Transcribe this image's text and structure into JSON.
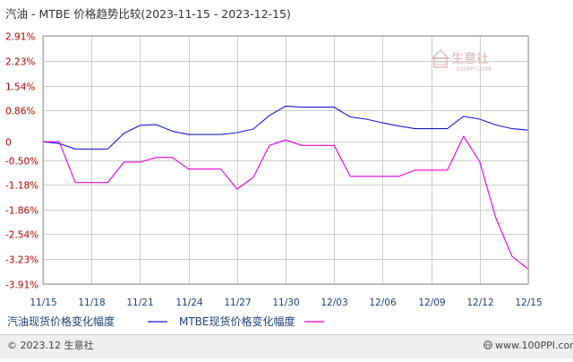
{
  "chart_data": {
    "type": "line",
    "title": "汽油 - MTBE 价格趋势比较(2023-11-15 - 2023-12-15)",
    "x": [
      "11/15",
      "11/16",
      "11/17",
      "11/18",
      "11/19",
      "11/20",
      "11/21",
      "11/22",
      "11/23",
      "11/24",
      "11/25",
      "11/26",
      "11/27",
      "11/28",
      "11/29",
      "11/30",
      "12/01",
      "12/02",
      "12/03",
      "12/04",
      "12/05",
      "12/06",
      "12/07",
      "12/08",
      "12/09",
      "12/10",
      "12/11",
      "12/12",
      "12/13",
      "12/14",
      "12/15"
    ],
    "x_tick_labels": [
      "11/15",
      "11/18",
      "11/21",
      "11/24",
      "11/27",
      "11/30",
      "12/03",
      "12/06",
      "12/09",
      "12/12",
      "12/15"
    ],
    "y_tick_labels": [
      "2.91%",
      "2.23%",
      "1.54%",
      "0.86%",
      "0",
      "-0.50%",
      "-1.18%",
      "-1.86%",
      "-2.54%",
      "-3.23%",
      "-3.91%"
    ],
    "y_tick_values": [
      2.91,
      2.23,
      1.54,
      0.86,
      0,
      -0.5,
      -1.18,
      -1.86,
      -2.54,
      -3.23,
      -3.91
    ],
    "ylim": [
      -3.91,
      2.91
    ],
    "grid": true,
    "legend_position": "bottom-left",
    "series": [
      {
        "name": "汽油现货价格变化幅度",
        "color": "#1a1ad0",
        "values": [
          0.0,
          -0.05,
          -0.2,
          -0.2,
          -0.2,
          0.23,
          0.45,
          0.47,
          0.29,
          0.2,
          0.2,
          0.2,
          0.25,
          0.35,
          0.72,
          0.98,
          0.95,
          0.95,
          0.95,
          0.68,
          0.62,
          0.52,
          0.43,
          0.36,
          0.36,
          0.36,
          0.7,
          0.62,
          0.46,
          0.36,
          0.32
        ]
      },
      {
        "name": "MTBE现货价格变化幅度",
        "color": "#e000e0",
        "values": [
          0.0,
          0.0,
          -1.12,
          -1.12,
          -1.12,
          -0.56,
          -0.56,
          -0.43,
          -0.43,
          -0.75,
          -0.75,
          -0.75,
          -1.3,
          -0.98,
          -0.1,
          0.05,
          -0.1,
          -0.1,
          -0.1,
          -0.95,
          -0.95,
          -0.95,
          -0.95,
          -0.78,
          -0.78,
          -0.78,
          0.15,
          -0.55,
          -2.1,
          -3.15,
          -3.5
        ]
      }
    ]
  },
  "legend": [
    {
      "label": "汽油现货价格变化幅度",
      "color": "#1a1ad0"
    },
    {
      "label": "MTBE现货价格变化幅度",
      "color": "#e000e0"
    }
  ],
  "footer": {
    "left": "© 2023.12 生意社",
    "right": "www.100PPI.com"
  },
  "watermark": {
    "text": "生意社",
    "sub": "100PPI.COM"
  },
  "colors": {
    "grid": "#cccccc",
    "axis_text_y": "#b00000",
    "axis_text_x": "#1f3f7a",
    "border": "#999999",
    "footer_bg": "#efefef"
  }
}
